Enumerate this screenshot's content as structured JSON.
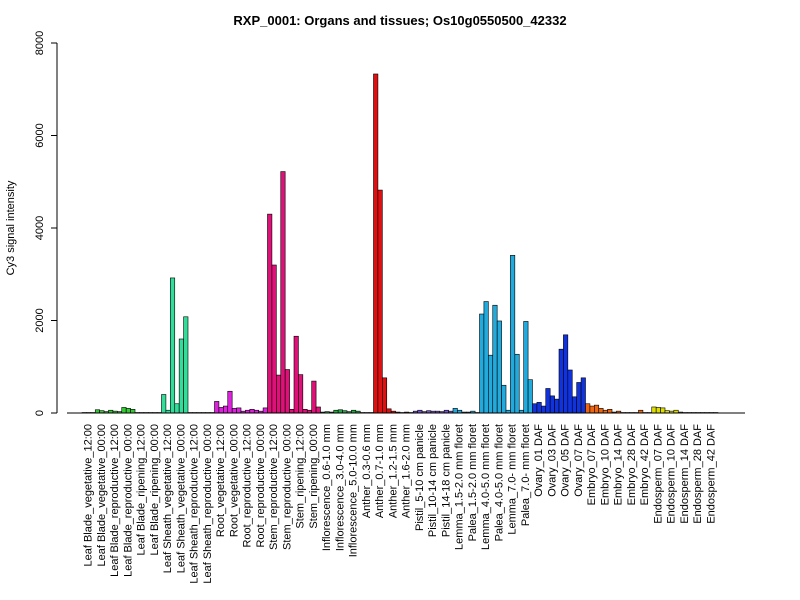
{
  "chart_data": {
    "type": "bar",
    "title": "RXP_0001: Organs and tissues; Os10g0550500_42332",
    "ylabel": "Cy3 signal intensity",
    "xlabel": "",
    "ylim": [
      0,
      8000
    ],
    "yticks": [
      0,
      2000,
      4000,
      6000,
      8000
    ],
    "grid": false,
    "legend": "none",
    "categories": [
      {
        "label": "Leaf Blade_vegetative_12:00",
        "color": "#a3a3a3",
        "values": [
          0,
          0,
          0
        ]
      },
      {
        "label": "Leaf Blade_vegetative_00:00",
        "color": "#33cc33",
        "values": [
          70,
          50,
          30
        ]
      },
      {
        "label": "Leaf Blade_reproductive_12:00",
        "color": "#33cc33",
        "values": [
          60,
          40,
          30
        ]
      },
      {
        "label": "Leaf Blade_reproductive_00:00",
        "color": "#33cc33",
        "values": [
          120,
          100,
          80
        ]
      },
      {
        "label": "Leaf Blade_ripening_12:00",
        "color": "#33cc33",
        "values": [
          10,
          5,
          10
        ]
      },
      {
        "label": "Leaf Blade_ripening_00:00",
        "color": "#33cc33",
        "values": [
          10,
          5,
          5
        ]
      },
      {
        "label": "Leaf Sheath_vegetative_12:00",
        "color": "#33dd99",
        "values": [
          400,
          60,
          2920
        ]
      },
      {
        "label": "Leaf Sheath_vegetative_00:00",
        "color": "#33dd99",
        "values": [
          200,
          1600,
          2080
        ]
      },
      {
        "label": "Leaf Sheath_reproductive_12:00",
        "color": "#33dd99",
        "values": [
          10,
          5,
          5
        ]
      },
      {
        "label": "Leaf Sheath_reproductive_00:00",
        "color": "#33dd99",
        "values": [
          5,
          10,
          5
        ]
      },
      {
        "label": "Root_vegetative_12:00",
        "color": "#dd22dd",
        "values": [
          250,
          120,
          150
        ]
      },
      {
        "label": "Root_vegetative_00:00",
        "color": "#dd22dd",
        "values": [
          470,
          100,
          110
        ]
      },
      {
        "label": "Root_reproductive_12:00",
        "color": "#dd22dd",
        "values": [
          40,
          60,
          80
        ]
      },
      {
        "label": "Root_reproductive_00:00",
        "color": "#dd22dd",
        "values": [
          60,
          40,
          110
        ]
      },
      {
        "label": "Stem_reproductive_12:00",
        "color": "#dd1177",
        "values": [
          4300,
          3200,
          820
        ]
      },
      {
        "label": "Stem_reproductive_00:00",
        "color": "#dd1177",
        "values": [
          5220,
          940,
          80
        ]
      },
      {
        "label": "Stem_ripening_12:00",
        "color": "#dd1177",
        "values": [
          1660,
          830,
          80
        ]
      },
      {
        "label": "Stem_ripening_00:00",
        "color": "#dd1177",
        "values": [
          60,
          690,
          130
        ]
      },
      {
        "label": "Inflorescence_0.6-1.0 mm",
        "color": "#22aa44",
        "values": [
          20,
          30,
          20
        ]
      },
      {
        "label": "Inflorescence_3.0-4.0 mm",
        "color": "#22aa44",
        "values": [
          60,
          70,
          50
        ]
      },
      {
        "label": "Inflorescence_5.0-10.0 mm",
        "color": "#22aa44",
        "values": [
          30,
          60,
          40
        ]
      },
      {
        "label": "Anther_0.3-0.6 mm",
        "color": "#dd1111",
        "values": [
          5,
          5,
          5
        ]
      },
      {
        "label": "Anther_0.7-1.0 mm",
        "color": "#dd1111",
        "values": [
          7330,
          4820,
          760
        ]
      },
      {
        "label": "Anther_1.2-1.5 mm",
        "color": "#dd1111",
        "values": [
          90,
          40,
          20
        ]
      },
      {
        "label": "Anther_1.6-2.0 mm",
        "color": "#dd1111",
        "values": [
          10,
          20,
          10
        ]
      },
      {
        "label": "Pistil_5-10 cm panicle",
        "color": "#7755cc",
        "values": [
          40,
          60,
          30
        ]
      },
      {
        "label": "Pistil_10-14 cm panicle",
        "color": "#7755cc",
        "values": [
          50,
          40,
          40
        ]
      },
      {
        "label": "Pistil_14-18 cm panicle",
        "color": "#7755cc",
        "values": [
          30,
          60,
          40
        ]
      },
      {
        "label": "Lemma_1.5-2.0 mm floret",
        "color": "#22aadd",
        "values": [
          100,
          60,
          20
        ]
      },
      {
        "label": "Palea_1.5-2.0 mm floret",
        "color": "#22aadd",
        "values": [
          20,
          40,
          10
        ]
      },
      {
        "label": "Lemma_4.0-5.0 mm floret",
        "color": "#22aadd",
        "values": [
          2140,
          2410,
          1250
        ]
      },
      {
        "label": "Palea_4.0-5.0 mm floret",
        "color": "#22aadd",
        "values": [
          2330,
          1990,
          600
        ]
      },
      {
        "label": "Lemma_7.0- mm floret",
        "color": "#22aadd",
        "values": [
          60,
          3410,
          1270
        ]
      },
      {
        "label": "Palea_7.0- mm floret",
        "color": "#22aadd",
        "values": [
          60,
          1980,
          720
        ]
      },
      {
        "label": "Ovary_01 DAF",
        "color": "#1133dd",
        "values": [
          200,
          230,
          150
        ]
      },
      {
        "label": "Ovary_03 DAF",
        "color": "#1133dd",
        "values": [
          530,
          370,
          300
        ]
      },
      {
        "label": "Ovary_05 DAF",
        "color": "#1133dd",
        "values": [
          1380,
          1690,
          930
        ]
      },
      {
        "label": "Ovary_07 DAF",
        "color": "#1133dd",
        "values": [
          350,
          660,
          760
        ]
      },
      {
        "label": "Embryo_07 DAF",
        "color": "#ee6611",
        "values": [
          200,
          150,
          170
        ]
      },
      {
        "label": "Embryo_10 DAF",
        "color": "#ee6611",
        "values": [
          100,
          60,
          80
        ]
      },
      {
        "label": "Embryo_14 DAF",
        "color": "#ee6611",
        "values": [
          20,
          40,
          10
        ]
      },
      {
        "label": "Embryo_28 DAF",
        "color": "#ee6611",
        "values": [
          10,
          5,
          5
        ]
      },
      {
        "label": "Embryo_42 DAF",
        "color": "#ee6611",
        "values": [
          60,
          5,
          10
        ]
      },
      {
        "label": "Endosperm_07 DAF",
        "color": "#dddd00",
        "values": [
          130,
          120,
          110
        ]
      },
      {
        "label": "Endosperm_10 DAF",
        "color": "#dddd00",
        "values": [
          50,
          40,
          60
        ]
      },
      {
        "label": "Endosperm_14 DAF",
        "color": "#dddd00",
        "values": [
          20,
          10,
          10
        ]
      },
      {
        "label": "Endosperm_28 DAF",
        "color": "#dddd00",
        "values": [
          5,
          5,
          5
        ]
      },
      {
        "label": "Endosperm_42 DAF",
        "color": "#dddd00",
        "values": [
          5,
          5,
          5
        ]
      }
    ]
  }
}
